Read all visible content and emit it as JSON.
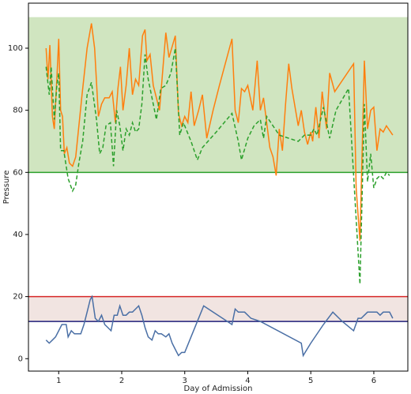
{
  "chart_data": {
    "type": "line",
    "xlabel": "Day of Admission",
    "ylabel": "Pressure",
    "xlim": [
      0.52,
      6.54
    ],
    "xticks": [
      1,
      2,
      3,
      4,
      5,
      6
    ],
    "ylim": [
      -4,
      114.5
    ],
    "yticks": [
      0,
      20,
      40,
      60,
      80,
      100
    ],
    "bands": [
      {
        "from": 60,
        "to": 110,
        "color": "#d0e5c0"
      },
      {
        "from": 12,
        "to": 20,
        "color": "#f1e4e1"
      }
    ],
    "hlines": [
      {
        "value": 60,
        "color": "#2ca02c"
      },
      {
        "value": 20,
        "color": "#d62728"
      },
      {
        "value": 12,
        "color": "#1f1f7a"
      }
    ],
    "series": [
      {
        "color": "#ff7f0e",
        "dash": false,
        "x": [
          0.8,
          0.83,
          0.86,
          0.9,
          0.93,
          0.97,
          1.0,
          1.03,
          1.06,
          1.09,
          1.13,
          1.17,
          1.22,
          1.27,
          1.32,
          1.37,
          1.45,
          1.52,
          1.57,
          1.63,
          1.68,
          1.73,
          1.8,
          1.85,
          1.9,
          1.94,
          1.98,
          2.02,
          2.07,
          2.12,
          2.17,
          2.22,
          2.27,
          2.33,
          2.37,
          2.4,
          2.45,
          2.5,
          2.55,
          2.6,
          2.7,
          2.75,
          2.85,
          2.9,
          2.95,
          3.0,
          3.05,
          3.1,
          3.15,
          3.22,
          3.28,
          3.35,
          3.45,
          3.55,
          3.75,
          3.8,
          3.85,
          3.9,
          3.95,
          4.0,
          4.08,
          4.15,
          4.2,
          4.25,
          4.35,
          4.4,
          4.45,
          4.5,
          4.55,
          4.6,
          4.65,
          4.7,
          4.8,
          4.85,
          4.9,
          4.95,
          5.0,
          5.03,
          5.08,
          5.13,
          5.18,
          5.25,
          5.3,
          5.38,
          5.68,
          5.72,
          5.78,
          5.85,
          5.9,
          5.95,
          6.0,
          6.05,
          6.1,
          6.15,
          6.2,
          6.3
        ],
        "values": [
          100,
          90,
          101,
          78,
          74,
          90,
          103,
          80,
          78,
          66,
          68,
          63,
          62,
          65,
          75,
          85,
          100,
          108,
          100,
          78,
          82,
          84,
          84,
          86,
          76,
          87,
          94,
          80,
          88,
          100,
          85,
          90,
          88,
          104,
          106,
          96,
          98,
          88,
          84,
          80,
          105,
          97,
          104,
          79,
          75,
          78,
          76,
          86,
          75,
          80,
          85,
          71,
          80,
          88,
          103,
          80,
          76,
          87,
          86,
          88,
          80,
          96,
          80,
          84,
          68,
          65,
          59,
          74,
          67,
          82,
          95,
          87,
          75,
          80,
          73,
          69,
          73,
          70,
          81,
          71,
          86,
          74,
          92,
          86,
          95,
          55,
          38,
          96,
          74,
          80,
          81,
          67,
          74,
          73,
          75,
          72
        ]
      },
      {
        "color": "#2ca02c",
        "dash": true,
        "x": [
          0.8,
          0.85,
          0.88,
          0.93,
          0.97,
          1.0,
          1.03,
          1.08,
          1.15,
          1.22,
          1.27,
          1.32,
          1.38,
          1.45,
          1.52,
          1.6,
          1.65,
          1.7,
          1.75,
          1.82,
          1.87,
          1.92,
          1.97,
          2.02,
          2.07,
          2.12,
          2.17,
          2.22,
          2.27,
          2.32,
          2.37,
          2.42,
          2.5,
          2.55,
          2.62,
          2.7,
          2.78,
          2.85,
          2.92,
          2.98,
          3.1,
          3.2,
          3.28,
          3.5,
          3.75,
          3.85,
          3.9,
          4.0,
          4.1,
          4.2,
          4.25,
          4.3,
          4.5,
          4.8,
          4.9,
          5.0,
          5.05,
          5.1,
          5.2,
          5.3,
          5.4,
          5.6,
          5.7,
          5.78,
          5.85,
          5.9,
          5.95,
          6.0,
          6.05,
          6.1,
          6.15,
          6.2,
          6.25
        ],
        "values": [
          94,
          85,
          94,
          77,
          88,
          92,
          67,
          67,
          58,
          54,
          56,
          63,
          70,
          85,
          89,
          77,
          66,
          68,
          75,
          76,
          62,
          80,
          75,
          67,
          74,
          72,
          76,
          73,
          74,
          82,
          98,
          90,
          82,
          77,
          87,
          88,
          92,
          100,
          72,
          76,
          70,
          64,
          68,
          73,
          79,
          70,
          64,
          71,
          75,
          77,
          71,
          78,
          72,
          70,
          72,
          72,
          74,
          72,
          81,
          71,
          80,
          87,
          52,
          24,
          82,
          57,
          66,
          55,
          58,
          59,
          58,
          60,
          59
        ]
      },
      {
        "color": "#4a6fa5",
        "dash": false,
        "x": [
          0.8,
          0.85,
          0.9,
          0.95,
          1.0,
          1.05,
          1.12,
          1.15,
          1.2,
          1.25,
          1.35,
          1.4,
          1.45,
          1.5,
          1.53,
          1.58,
          1.63,
          1.68,
          1.73,
          1.78,
          1.83,
          1.88,
          1.93,
          1.97,
          2.02,
          2.07,
          2.12,
          2.17,
          2.22,
          2.27,
          2.32,
          2.37,
          2.42,
          2.48,
          2.53,
          2.58,
          2.63,
          2.7,
          2.75,
          2.8,
          2.85,
          2.9,
          2.95,
          3.0,
          3.1,
          3.3,
          3.45,
          3.6,
          3.75,
          3.8,
          3.85,
          3.95,
          4.05,
          4.2,
          4.85,
          4.88,
          5.0,
          5.2,
          5.35,
          5.5,
          5.68,
          5.75,
          5.8,
          5.85,
          5.9,
          5.95,
          6.05,
          6.1,
          6.15,
          6.2,
          6.25,
          6.3
        ],
        "values": [
          6,
          5,
          6,
          7,
          9,
          11,
          11,
          7,
          9,
          8,
          8,
          11,
          15,
          19,
          20,
          13,
          12,
          14,
          11,
          10,
          9,
          14,
          14,
          17,
          14,
          14,
          15,
          15,
          16,
          17,
          14,
          10,
          7,
          6,
          9,
          8,
          8,
          7,
          8,
          5,
          3,
          1,
          2,
          2,
          7,
          17,
          15,
          13,
          11,
          16,
          15,
          15,
          13,
          12,
          5,
          1,
          5,
          11,
          15,
          12,
          9,
          13,
          13,
          14,
          15,
          15,
          15,
          14,
          15,
          15,
          15,
          13
        ]
      }
    ]
  }
}
